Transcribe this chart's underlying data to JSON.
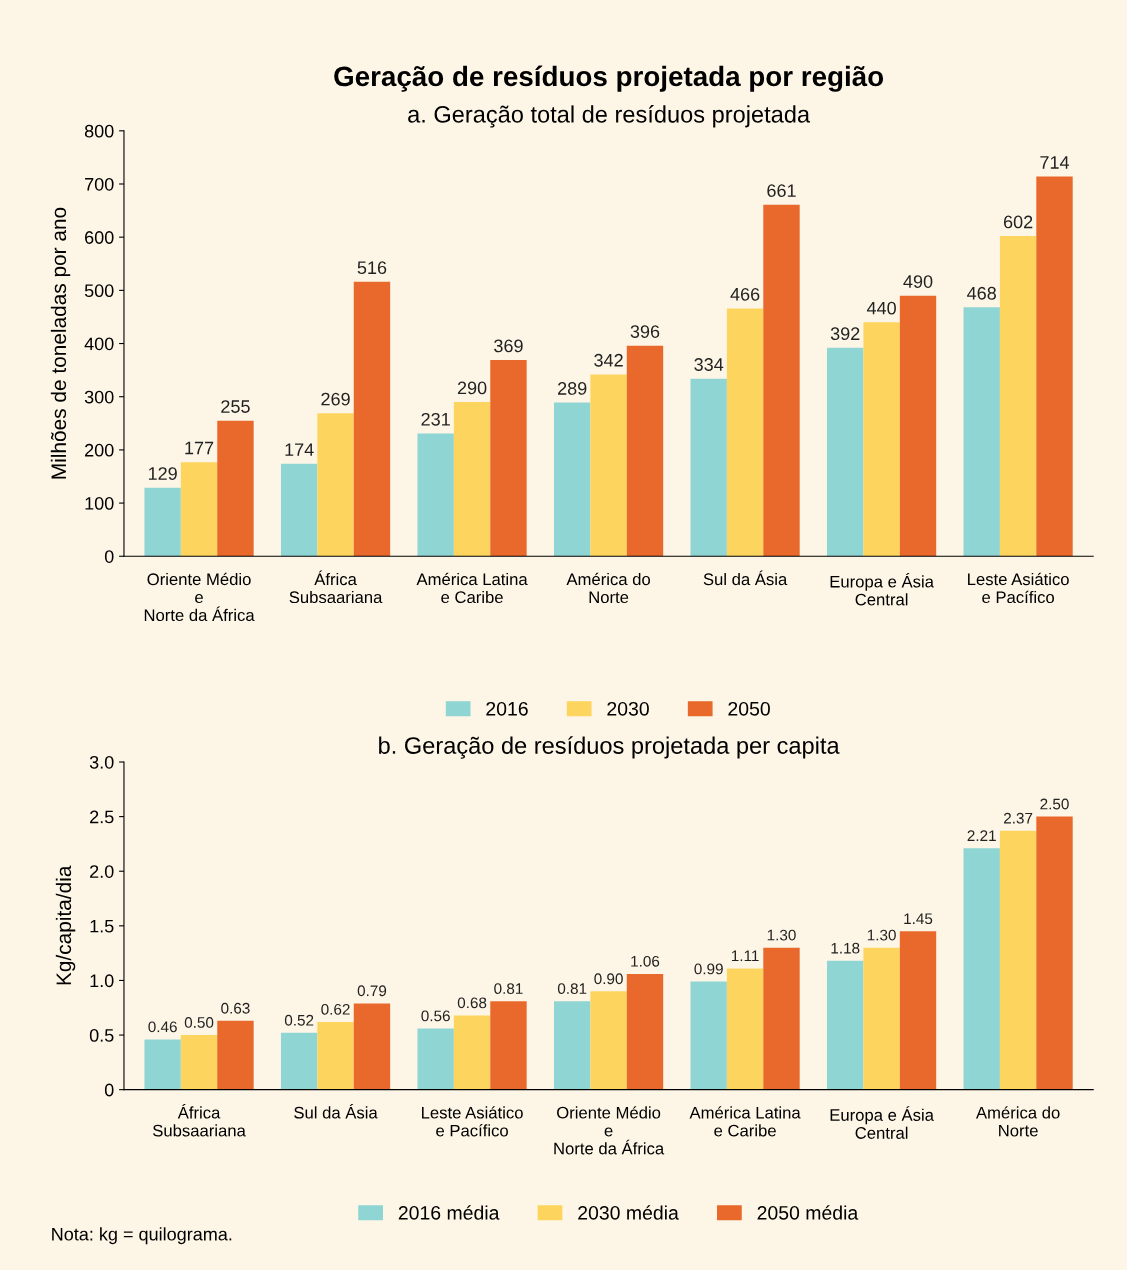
{
  "chart_data": [
    {
      "type": "bar",
      "title": "Geração de resíduos projetada por região",
      "subtitle": "a. Geração total de resíduos projetada",
      "ylabel": "Milhões de toneladas por ano",
      "categories": [
        "Oriente Médio\ne\nNorte da África",
        "África\nSubsaariana",
        "América Latina\ne Caribe",
        "América do\nNorte",
        "Sul da Ásia",
        "Europa e Ásia\nCentral",
        "Leste Asiático\ne Pacífico"
      ],
      "series": [
        {
          "name": "2016",
          "color": "#8fd5d3",
          "values": [
            129,
            174,
            231,
            289,
            334,
            392,
            468
          ]
        },
        {
          "name": "2030",
          "color": "#fdd45e",
          "values": [
            177,
            269,
            290,
            342,
            466,
            440,
            602
          ]
        },
        {
          "name": "2050",
          "color": "#e8692b",
          "values": [
            255,
            516,
            369,
            396,
            661,
            490,
            714
          ]
        }
      ],
      "ylim": [
        0,
        800
      ],
      "yticks": [
        0,
        100,
        200,
        300,
        400,
        500,
        600,
        700,
        800
      ],
      "data_labels": true,
      "legend": "bottom",
      "grid": false
    },
    {
      "type": "bar",
      "title": "b. Geração de resíduos projetada per capita",
      "ylabel": "Kg/capita/dia",
      "categories": [
        "África\nSubsaariana",
        "Sul da Ásia",
        "Leste Asiático\ne Pacífico",
        "Oriente Médio\ne\nNorte da África",
        "América Latina\ne Caribe",
        "Europa e Ásia\nCentral",
        "América do\nNorte"
      ],
      "series": [
        {
          "name": "2016 média",
          "color": "#8fd5d3",
          "values": [
            0.46,
            0.52,
            0.56,
            0.81,
            0.99,
            1.18,
            2.21
          ],
          "value_labels": [
            "0.46",
            "0.52",
            "0.56",
            "0.81",
            "0.99",
            "1.18",
            "2.21"
          ]
        },
        {
          "name": "2030 média",
          "color": "#fdd45e",
          "values": [
            0.5,
            0.62,
            0.68,
            0.9,
            1.11,
            1.3,
            2.37
          ],
          "value_labels": [
            "0.50",
            "0.62",
            "0.68",
            "0.90",
            "1.11",
            "1.30",
            "2.37"
          ]
        },
        {
          "name": "2050 média",
          "color": "#e8692b",
          "values": [
            0.63,
            0.79,
            0.81,
            1.06,
            1.3,
            1.45,
            2.5
          ],
          "value_labels": [
            "0.63",
            "0.79",
            "0.81",
            "1.06",
            "1.30",
            "1.45",
            "2.50"
          ]
        }
      ],
      "ylim": [
        0,
        3.0
      ],
      "yticks": [
        0,
        0.5,
        {
          "value": 1,
          "label": "1.0"
        },
        1.5,
        {
          "value": 2,
          "label": "2.0"
        },
        2.5,
        {
          "value": 3,
          "label": "3.0"
        }
      ],
      "legend": "bottom",
      "grid": false,
      "annotations": [
        "Nota: kg = quilograma."
      ]
    }
  ]
}
